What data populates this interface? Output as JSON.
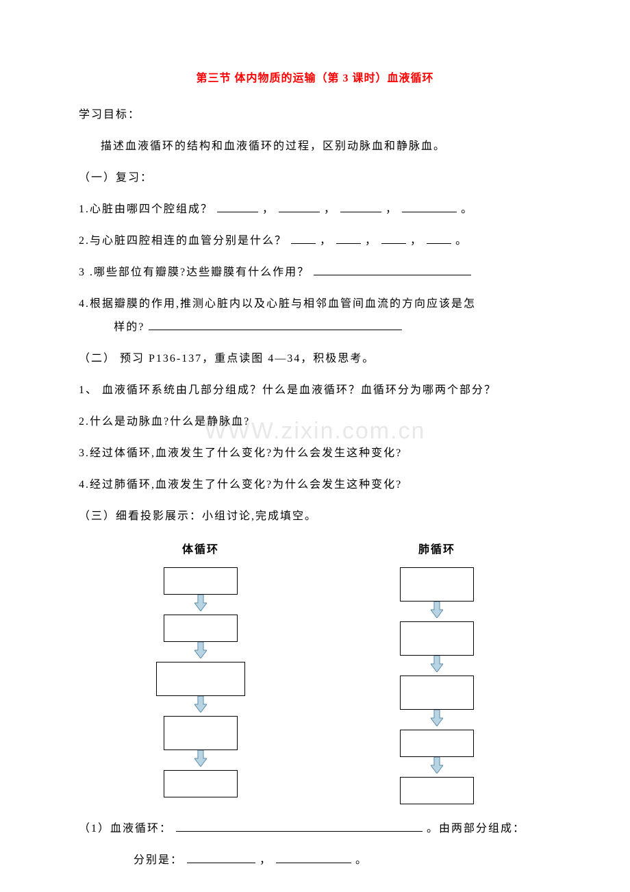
{
  "title_color": "#ff0000",
  "title": "第三节  体内物质的运输（第 3 课时）血液循环",
  "heading_objective": "学习目标：",
  "objective_text": "描述血液循环的结构和血液循环的过程，区别动脉血和静脉血。",
  "section1_header": "（一）复习：",
  "q1_prefix": "1.心脏由哪四个腔组成？ ",
  "q1_sep1": "，",
  "q1_sep2": "  ，",
  "q1_sep3": " ，",
  "q1_end": "。",
  "q2_prefix": "2.与心脏四腔相连的血管分别是什么？",
  "q2_sep": "，",
  "q2_end": "。",
  "q3_prefix": "3 .哪些部位有瓣膜?达些瓣膜有什么作用？",
  "q4_line1": "4.根据瓣膜的作用,推测心脏内以及心脏与相邻血管间血流的方向应该是怎",
  "q4_line2_prefix": "样的?",
  "section2_header": "（二） 预习 P136-137，重点读图 4—34，积极思考。",
  "p1": "1、 血液循环系统由几部分组成？什么是血液循环？血循环分为哪两个部分？",
  "p2": "2.什么是动脉血?什么是静脉血?",
  "p3": "3.经过体循环,血液发生了什么变化?为什么会发生这种变化?",
  "p4": "4.经过肺循环,血液发生了什么变化?为什么会发生这种变化?",
  "section3_header": "（三）细看投影展示：小组讨论,完成填空。",
  "flow_left_label": "体循环",
  "flow_right_label": "肺循环",
  "flowchart": {
    "box_border": "#000000",
    "box_fill": "#ffffff",
    "arrow_fill": "#b8d4e3",
    "arrow_stroke": "#5b8ba8",
    "left_boxes": [
      {
        "w": 108,
        "h": 40
      },
      {
        "w": 108,
        "h": 40
      },
      {
        "w": 130,
        "h": 50
      },
      {
        "w": 108,
        "h": 50
      },
      {
        "w": 108,
        "h": 40
      }
    ],
    "right_boxes": [
      {
        "w": 108,
        "h": 50
      },
      {
        "w": 108,
        "h": 50
      },
      {
        "w": 108,
        "h": 50
      },
      {
        "w": 108,
        "h": 40
      },
      {
        "w": 108,
        "h": 40
      }
    ],
    "arrow_w": 18,
    "arrow_h": 24
  },
  "fill1_prefix": "（1）血液循环： ",
  "fill1_suffix": "。由两部分组成：",
  "fill2_prefix": "分别是：",
  "fill2_sep": "，",
  "fill2_end": "。",
  "blanks": {
    "q1_a": 60,
    "q1_b": 60,
    "q1_c": 60,
    "q1_d": 80,
    "q2_a": 36,
    "q2_b": 36,
    "q2_c": 36,
    "q2_d": 36,
    "q3": 230,
    "q4": 370,
    "fill1": 360,
    "fill2a": 100,
    "fill2b": 110
  }
}
